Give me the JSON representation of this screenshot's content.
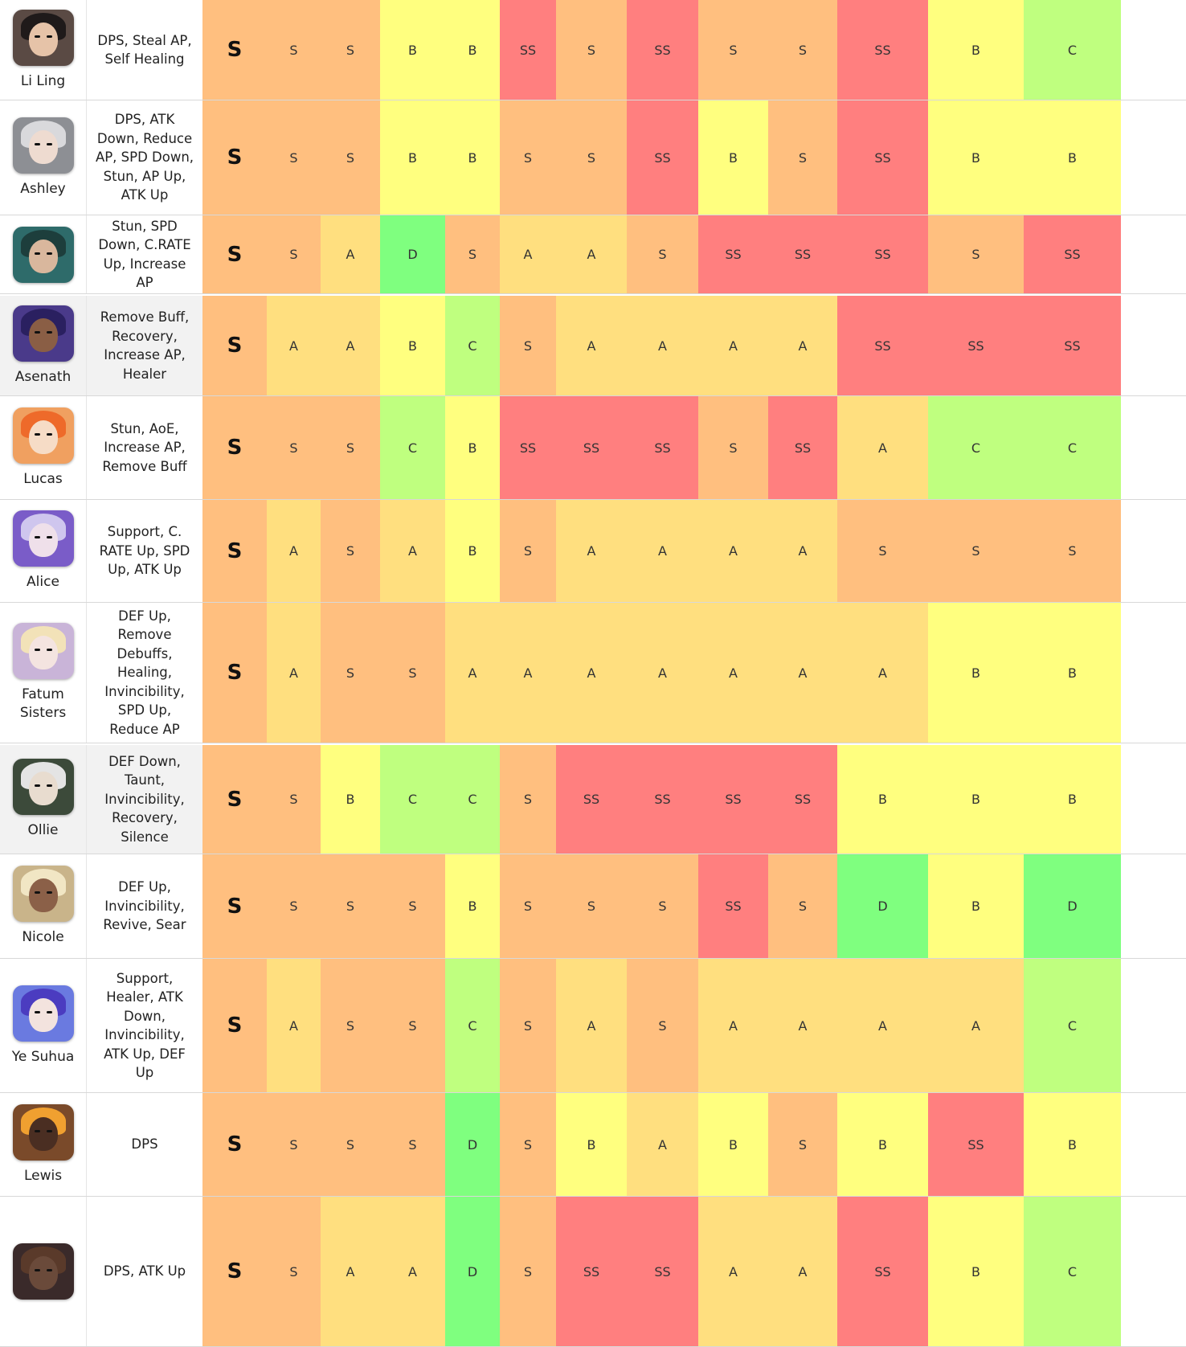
{
  "palette": {
    "SS": "#ff7f7f",
    "S": "#ffbf7f",
    "A": "#ffdf7f",
    "B": "#ffff7f",
    "C": "#bfff7f",
    "D": "#7fff7f"
  },
  "rows": [
    {
      "name": "Li Ling",
      "skills": "DPS, Steal AP, Self Healing",
      "overall": "S",
      "ratings": [
        "S",
        "S",
        "B",
        "B",
        "SS",
        "S",
        "SS",
        "S",
        "S",
        "SS",
        "B",
        "C"
      ],
      "portrait": {
        "bg": "#5a4a44",
        "hair": "#1f1a1a",
        "face": "#e6c3a8"
      }
    },
    {
      "name": "Ashley",
      "skills": "DPS, ATK Down, Reduce AP, SPD Down, Stun, AP Up, ATK Up",
      "overall": "S",
      "ratings": [
        "S",
        "S",
        "B",
        "B",
        "S",
        "S",
        "SS",
        "B",
        "S",
        "SS",
        "B",
        "B"
      ],
      "portrait": {
        "bg": "#8d8f94",
        "hair": "#d9d9dc",
        "face": "#eedbd0"
      }
    },
    {
      "name": "",
      "skills": "Stun, SPD Down, C.RATE Up, Increase AP",
      "overall": "S",
      "ratings": [
        "S",
        "A",
        "D",
        "S",
        "A",
        "A",
        "S",
        "SS",
        "SS",
        "SS",
        "S",
        "SS"
      ],
      "portrait": {
        "bg": "#2e6b6a",
        "hair": "#1d3e3c",
        "face": "#d9b79d"
      }
    },
    {
      "name": "Asenath",
      "skills": "Remove Buff, Recovery, Increase AP, Healer",
      "overall": "S",
      "ratings": [
        "A",
        "A",
        "B",
        "C",
        "S",
        "A",
        "A",
        "A",
        "A",
        "SS",
        "SS",
        "SS"
      ],
      "portrait": {
        "bg": "#4a3a8a",
        "hair": "#2a2060",
        "face": "#8a5e45"
      }
    },
    {
      "name": "Lucas",
      "skills": "Stun, AoE, Increase AP, Remove Buff",
      "overall": "S",
      "ratings": [
        "S",
        "S",
        "C",
        "B",
        "SS",
        "SS",
        "SS",
        "S",
        "SS",
        "A",
        "C",
        "C"
      ],
      "portrait": {
        "bg": "#f0a060",
        "hair": "#ee6a2a",
        "face": "#f6dcc6"
      }
    },
    {
      "name": "Alice",
      "skills": "Support, C. RATE Up, SPD Up, ATK Up",
      "overall": "S",
      "ratings": [
        "A",
        "S",
        "A",
        "B",
        "S",
        "A",
        "A",
        "A",
        "A",
        "S",
        "S",
        "S"
      ],
      "portrait": {
        "bg": "#7a5cc8",
        "hair": "#cfc6ee",
        "face": "#efe0ea"
      }
    },
    {
      "name": "Fatum Sisters",
      "skills": "DEF Up, Remove Debuffs, Healing, Invincibility, SPD Up, Reduce AP",
      "overall": "S",
      "ratings": [
        "A",
        "S",
        "S",
        "A",
        "A",
        "A",
        "A",
        "A",
        "A",
        "A",
        "B",
        "B"
      ],
      "portrait": {
        "bg": "#c9b4d8",
        "hair": "#f2e2b8",
        "face": "#f4e4e0"
      }
    },
    {
      "name": "Ollie",
      "skills": "DEF Down, Taunt, Invincibility, Recovery, Silence",
      "overall": "S",
      "ratings": [
        "S",
        "B",
        "C",
        "C",
        "S",
        "SS",
        "SS",
        "SS",
        "SS",
        "B",
        "B",
        "B"
      ],
      "portrait": {
        "bg": "#3c4a3a",
        "hair": "#e4e4e4",
        "face": "#e8dccf"
      }
    },
    {
      "name": "Nicole",
      "skills": "DEF Up, Invincibility, Revive, Sear",
      "overall": "S",
      "ratings": [
        "S",
        "S",
        "S",
        "B",
        "S",
        "S",
        "S",
        "SS",
        "S",
        "D",
        "B",
        "D"
      ],
      "portrait": {
        "bg": "#c9b48a",
        "hair": "#f1e6c4",
        "face": "#8b6048"
      }
    },
    {
      "name": "Ye Suhua",
      "skills": "Support, Healer, ATK Down, Invincibility, ATK Up, DEF Up",
      "overall": "S",
      "ratings": [
        "A",
        "S",
        "S",
        "C",
        "S",
        "A",
        "S",
        "A",
        "A",
        "A",
        "A",
        "C"
      ],
      "portrait": {
        "bg": "#6a7ae0",
        "hair": "#4b3cc0",
        "face": "#f3e3de"
      }
    },
    {
      "name": "Lewis",
      "skills": "DPS",
      "overall": "S",
      "ratings": [
        "S",
        "S",
        "S",
        "D",
        "S",
        "B",
        "A",
        "B",
        "S",
        "B",
        "SS",
        "B"
      ],
      "portrait": {
        "bg": "#7a4a2a",
        "hair": "#f0a030",
        "face": "#4a2e22"
      }
    },
    {
      "name": "",
      "skills": "DPS, ATK Up",
      "overall": "S",
      "ratings": [
        "S",
        "A",
        "A",
        "D",
        "S",
        "SS",
        "SS",
        "A",
        "A",
        "SS",
        "B",
        "C"
      ],
      "portrait": {
        "bg": "#3a2a2a",
        "hair": "#5a3a2a",
        "face": "#6a4a3a"
      }
    }
  ]
}
